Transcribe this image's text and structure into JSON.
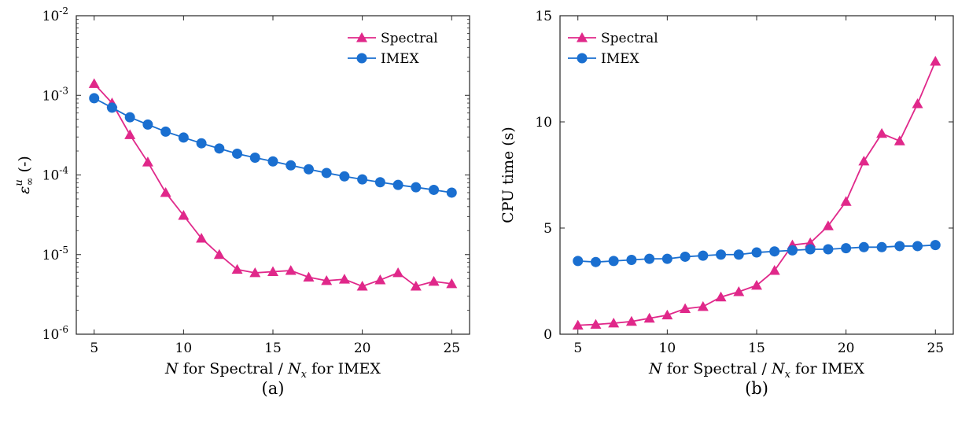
{
  "colors": {
    "spectral": "#e0288a",
    "imex": "#1a6fd0"
  },
  "panels": [
    {
      "caption": "(a)",
      "legend": {
        "spectral": "Spectral",
        "imex": "IMEX"
      },
      "xlabel": {
        "italic": "N",
        "mid": " for Spectral / ",
        "italic2": "N",
        "sub": "x",
        "tail": " for IMEX"
      },
      "ylabel": {
        "symbol": "ε",
        "sup": "u",
        "sub": "∞",
        "tail": " (-)"
      },
      "xticks": [
        "5",
        "10",
        "15",
        "20",
        "25"
      ],
      "yticks": [
        {
          "base": "10",
          "exp": "-6"
        },
        {
          "base": "10",
          "exp": "-5"
        },
        {
          "base": "10",
          "exp": "-4"
        },
        {
          "base": "10",
          "exp": "-3"
        },
        {
          "base": "10",
          "exp": "-2"
        }
      ]
    },
    {
      "caption": "(b)",
      "legend": {
        "spectral": "Spectral",
        "imex": "IMEX"
      },
      "xlabel": {
        "italic": "N",
        "mid": " for Spectral / ",
        "italic2": "N",
        "sub": "x",
        "tail": " for IMEX"
      },
      "ylabel": {
        "text": "CPU time (s)"
      },
      "xticks": [
        "5",
        "10",
        "15",
        "20",
        "25"
      ],
      "yticks": [
        "0",
        "5",
        "10",
        "15"
      ]
    }
  ],
  "chart_data": [
    {
      "type": "line",
      "yscale": "log",
      "xlim": [
        4,
        26
      ],
      "ylim": [
        1e-06,
        0.01
      ],
      "grid": false,
      "legend_position": "top-right",
      "x": [
        5,
        6,
        7,
        8,
        9,
        10,
        11,
        12,
        13,
        14,
        15,
        16,
        17,
        18,
        19,
        20,
        21,
        22,
        23,
        24,
        25
      ],
      "series": [
        {
          "name": "Spectral",
          "marker": "triangle",
          "values": [
            0.0014,
            0.0008,
            0.00032,
            0.000145,
            6e-05,
            3.1e-05,
            1.6e-05,
            1e-05,
            6.5e-06,
            5.9e-06,
            6.1e-06,
            6.3e-06,
            5.2e-06,
            4.7e-06,
            4.9e-06,
            4e-06,
            4.8e-06,
            5.9e-06,
            4e-06,
            4.6e-06,
            4.3e-06
          ]
        },
        {
          "name": "IMEX",
          "marker": "circle",
          "values": [
            0.00092,
            0.0007,
            0.00053,
            0.00043,
            0.00035,
            0.000295,
            0.00025,
            0.000215,
            0.000185,
            0.000165,
            0.000148,
            0.000132,
            0.000118,
            0.000106,
            9.6e-05,
            8.8e-05,
            8.1e-05,
            7.5e-05,
            7e-05,
            6.5e-05,
            6e-05
          ]
        }
      ]
    },
    {
      "type": "line",
      "yscale": "linear",
      "xlim": [
        4,
        26
      ],
      "ylim": [
        0,
        15
      ],
      "grid": false,
      "legend_position": "top-left",
      "x": [
        5,
        6,
        7,
        8,
        9,
        10,
        11,
        12,
        13,
        14,
        15,
        16,
        17,
        18,
        19,
        20,
        21,
        22,
        23,
        24,
        25
      ],
      "series": [
        {
          "name": "Spectral",
          "marker": "triangle",
          "values": [
            0.42,
            0.46,
            0.52,
            0.6,
            0.75,
            0.9,
            1.2,
            1.3,
            1.75,
            2.0,
            2.3,
            3.0,
            4.2,
            4.3,
            5.1,
            6.25,
            8.15,
            9.45,
            9.1,
            10.85,
            12.85
          ]
        },
        {
          "name": "IMEX",
          "marker": "circle",
          "values": [
            3.45,
            3.4,
            3.45,
            3.5,
            3.55,
            3.55,
            3.65,
            3.7,
            3.75,
            3.75,
            3.85,
            3.9,
            3.95,
            4.0,
            4.0,
            4.05,
            4.1,
            4.1,
            4.15,
            4.15,
            4.2
          ]
        }
      ]
    }
  ]
}
